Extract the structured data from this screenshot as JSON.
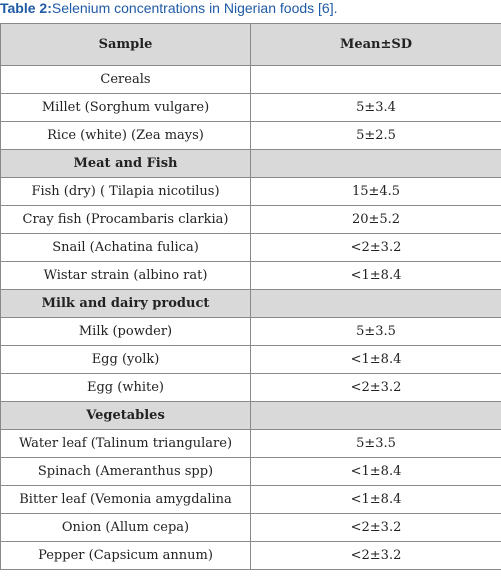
{
  "caption": {
    "label": "Table 2:",
    "text": "Selenium concentrations in Nigerian foods [6]."
  },
  "table": {
    "headers": [
      "Sample",
      "Mean±SD"
    ],
    "rows": [
      {
        "type": "section-plain",
        "sample": "Cereals",
        "value": ""
      },
      {
        "type": "data",
        "sample": "Millet (Sorghum vulgare)",
        "value": "5±3.4"
      },
      {
        "type": "data",
        "sample": "Rice (white) (Zea mays)",
        "value": "5±2.5"
      },
      {
        "type": "section",
        "sample": "Meat and Fish",
        "value": ""
      },
      {
        "type": "data",
        "sample": "Fish (dry) ( Tilapia nicotilus)",
        "value": "15±4.5"
      },
      {
        "type": "data",
        "sample": "Cray fish (Procambaris clarkia)",
        "value": "20±5.2"
      },
      {
        "type": "data",
        "sample": "Snail (Achatina fulica)",
        "value": "<2±3.2"
      },
      {
        "type": "data",
        "sample": "Wistar strain (albino rat)",
        "value": "<1±8.4"
      },
      {
        "type": "section",
        "sample": "Milk and dairy product",
        "value": ""
      },
      {
        "type": "data",
        "sample": "Milk (powder)",
        "value": "5±3.5"
      },
      {
        "type": "data",
        "sample": "Egg (yolk)",
        "value": "<1±8.4"
      },
      {
        "type": "data",
        "sample": "Egg (white)",
        "value": "<2±3.2"
      },
      {
        "type": "section",
        "sample": "Vegetables",
        "value": ""
      },
      {
        "type": "data",
        "sample": "Water leaf (Talinum triangulare)",
        "value": "5±3.5"
      },
      {
        "type": "data",
        "sample": "Spinach (Ameranthus spp)",
        "value": "<1±8.4"
      },
      {
        "type": "data",
        "sample": "Bitter leaf (Vemonia amygdalina",
        "value": "<1±8.4"
      },
      {
        "type": "data",
        "sample": "Onion (Allum cepa)",
        "value": "<2±3.2"
      },
      {
        "type": "data",
        "sample": "Pepper (Capsicum annum)",
        "value": "<2±3.2"
      }
    ]
  }
}
